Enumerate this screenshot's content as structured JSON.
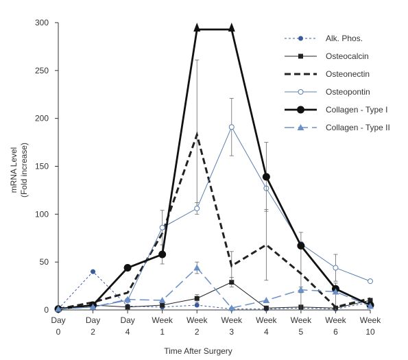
{
  "chart_data": {
    "type": "line",
    "title": "",
    "xlabel": "Time After Surgery",
    "ylabel_lines": [
      "mRNA Level",
      "(Fold increase)"
    ],
    "categories": [
      [
        "Day",
        "0"
      ],
      [
        "Day",
        "2"
      ],
      [
        "Day",
        "4"
      ],
      [
        "Week",
        "1"
      ],
      [
        "Week",
        "2"
      ],
      [
        "Week",
        "3"
      ],
      [
        "Week",
        "4"
      ],
      [
        "Week",
        "5"
      ],
      [
        "Week",
        "6"
      ],
      [
        "Week",
        "10"
      ]
    ],
    "ylim": [
      0,
      300
    ],
    "yticks": [
      0,
      50,
      100,
      150,
      200,
      250,
      300
    ],
    "grid": false,
    "legend_position": "top-right",
    "series": [
      {
        "name": "Alk. Phos.",
        "color": "#3a5a9c",
        "line_style": "dotted",
        "marker": "filled-circle",
        "values": [
          1,
          40,
          4,
          3,
          5,
          1,
          1,
          2,
          1,
          8
        ]
      },
      {
        "name": "Osteocalcin",
        "color": "#222222",
        "line_style": "thin-solid",
        "marker": "filled-square",
        "values": [
          1,
          5,
          3,
          5,
          12,
          29,
          2,
          3,
          2,
          10
        ],
        "error": [
          0,
          0,
          0,
          0,
          4,
          5,
          0,
          0,
          0,
          2
        ]
      },
      {
        "name": "Osteonectin",
        "color": "#222222",
        "line_style": "thick-dashed",
        "marker": "none",
        "values": [
          1,
          8,
          18,
          80,
          183,
          46,
          68,
          38,
          3,
          12
        ],
        "error": [
          0,
          0,
          0,
          0,
          78,
          15,
          37,
          43,
          25,
          0
        ]
      },
      {
        "name": "Osteopontin",
        "color": "#5b7fb3",
        "line_style": "thin-solid",
        "marker": "open-circle",
        "values": [
          1,
          3,
          10,
          86,
          106,
          191,
          127,
          69,
          44,
          30
        ],
        "error": [
          0,
          0,
          0,
          18,
          6,
          30,
          0,
          0,
          14,
          0
        ]
      },
      {
        "name": "Collagen - Type I",
        "color": "#111111",
        "line_style": "thick-solid",
        "marker": "filled-circle",
        "values": [
          1,
          5,
          44,
          58,
          300,
          300,
          139,
          67,
          22,
          5
        ],
        "error": [
          0,
          0,
          0,
          10,
          0,
          0,
          36,
          0,
          0,
          0
        ],
        "arrows_at_top": [
          4,
          5
        ]
      },
      {
        "name": "Collagen - Type II",
        "color": "#6b8fc7",
        "line_style": "long-dashed",
        "marker": "filled-triangle",
        "values": [
          1,
          3,
          11,
          10,
          44,
          2,
          10,
          21,
          19,
          4
        ],
        "error": [
          0,
          0,
          0,
          0,
          6,
          0,
          0,
          3,
          0,
          0
        ]
      }
    ]
  }
}
